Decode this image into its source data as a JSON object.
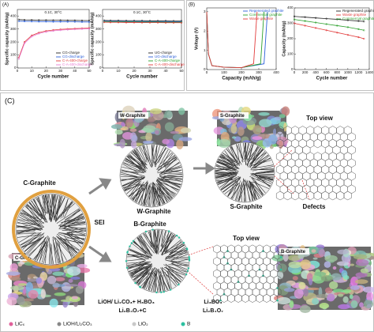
{
  "panel_labels": [
    "(A)",
    "(B)",
    "(C)"
  ],
  "chart_data": [
    {
      "type": "line",
      "x_label": "Cycle number",
      "y_label": "Specific capacity (mAh/g)",
      "annotation": "0.1C, 30°C",
      "xlim": [
        0,
        50
      ],
      "xticks": [
        0,
        10,
        20,
        30,
        40,
        50
      ],
      "ylim": [
        0,
        450
      ],
      "yticks": [
        0,
        100,
        200,
        300,
        400
      ],
      "legend": "lower right",
      "x": [
        1,
        5,
        10,
        15,
        20,
        25,
        30,
        35,
        40,
        45,
        50
      ],
      "series": [
        {
          "name": "CG-charge",
          "color": "#222222",
          "values": [
            372,
            370,
            369,
            368,
            368,
            367,
            367,
            366,
            366,
            365,
            365
          ]
        },
        {
          "name": "CG-discharge",
          "color": "#2b5fd9",
          "values": [
            360,
            359,
            358,
            357,
            357,
            356,
            356,
            355,
            355,
            354,
            354
          ]
        },
        {
          "name": "C-A-400-charge",
          "color": "#e23c3c",
          "values": [
            80,
            200,
            250,
            272,
            285,
            292,
            297,
            300,
            303,
            305,
            307
          ]
        },
        {
          "name": "C-A-400-discharge",
          "color": "#e87ad0",
          "values": [
            70,
            190,
            242,
            265,
            278,
            286,
            291,
            295,
            298,
            300,
            302
          ]
        }
      ]
    },
    {
      "type": "line",
      "x_label": "Cycle number",
      "y_label": "Specific capacity (mAh/g)",
      "annotation": "0.1C, 30°C",
      "xlim": [
        0,
        50
      ],
      "xticks": [
        0,
        10,
        20,
        30,
        40,
        50
      ],
      "ylim": [
        0,
        450
      ],
      "yticks": [
        0,
        100,
        200,
        300,
        400
      ],
      "legend": "lower right",
      "x": [
        1,
        5,
        10,
        15,
        20,
        25,
        30,
        35,
        40,
        45,
        50
      ],
      "series": [
        {
          "name": "UG-charge",
          "color": "#222222",
          "values": [
            366,
            365,
            365,
            364,
            364,
            364,
            363,
            363,
            363,
            362,
            362
          ]
        },
        {
          "name": "UG-discharge",
          "color": "#2b5fd9",
          "values": [
            360,
            359,
            359,
            358,
            358,
            358,
            357,
            357,
            357,
            356,
            356
          ]
        },
        {
          "name": "C-A-400-charge",
          "color": "#2ca02c",
          "values": [
            356,
            355,
            355,
            354,
            354,
            353,
            353,
            353,
            352,
            352,
            352
          ]
        },
        {
          "name": "C-A-400-discharge",
          "color": "#e23c3c",
          "values": [
            352,
            351,
            351,
            350,
            350,
            349,
            349,
            349,
            348,
            348,
            348
          ]
        }
      ]
    },
    {
      "type": "curves",
      "x_label": "Capacity (mAh/g)",
      "y_label": "Voltage (V)",
      "xlim": [
        0,
        400
      ],
      "xticks": [
        0,
        100,
        200,
        300,
        400
      ],
      "ylim": [
        0,
        3.2
      ],
      "yticks": [
        0,
        1,
        2,
        3
      ],
      "legend": "upper right",
      "series": [
        {
          "name": "Regenerated graphite",
          "color": "#2b5fd9",
          "x": [
            0,
            10,
            30,
            100,
            200,
            330,
            350
          ],
          "values": [
            3.0,
            0.8,
            0.2,
            0.12,
            0.1,
            0.3,
            3.0
          ]
        },
        {
          "name": "Commercial graphite",
          "color": "#2ca02c",
          "x": [
            0,
            10,
            30,
            100,
            200,
            310,
            330
          ],
          "values": [
            3.0,
            0.8,
            0.2,
            0.12,
            0.1,
            0.3,
            3.0
          ]
        },
        {
          "name": "Waste graphite",
          "color": "#e23c3c",
          "x": [
            0,
            10,
            30,
            100,
            200,
            270,
            290
          ],
          "values": [
            3.0,
            0.8,
            0.2,
            0.12,
            0.1,
            0.3,
            3.0
          ]
        }
      ]
    },
    {
      "type": "line",
      "x_label": "Cycle number",
      "y_label": "Capacity (mAh/g)",
      "xlim": [
        0,
        1400
      ],
      "xticks": [
        0,
        200,
        400,
        600,
        800,
        1000,
        1200,
        1400
      ],
      "ylim": [
        0,
        400
      ],
      "yticks": [
        0,
        100,
        200,
        300,
        400
      ],
      "legend": "upper right",
      "x": [
        0,
        200,
        400,
        600,
        800,
        1000,
        1200,
        1300
      ],
      "series": [
        {
          "name": "Regenerated graphite",
          "color": "#222222",
          "values": [
            345,
            340,
            335,
            330,
            326,
            320,
            315,
            312
          ]
        },
        {
          "name": "Waste graphite",
          "color": "#e23c3c",
          "values": [
            300,
            285,
            270,
            255,
            240,
            225,
            210,
            200
          ]
        },
        {
          "name": "Commercial graphite",
          "color": "#2ca02c",
          "values": [
            325,
            315,
            305,
            295,
            285,
            275,
            262,
            255
          ]
        }
      ]
    }
  ],
  "diagram": {
    "sem_w": "W-Graphite",
    "sem_s": "S-Graphite",
    "top_view_1": "Top view",
    "c_graphite": "C-Graphite",
    "sei": "SEI",
    "w_graphite": "W-Graphite",
    "s_graphite": "S-Graphite",
    "defects": "Defects",
    "b_graphite": "B-Graphite",
    "top_view_2": "Top view",
    "sem_c": "C-Graphite",
    "sem_b": "B-Graphite",
    "reaction_1": "LiOH/ Li₂CO₃+ H₃BO₃",
    "reaction_2": "Li₂B₄O₇+C",
    "product_1": "Li₃BO₃",
    "product_2": "Li₂B₄O₇",
    "legend": [
      "LiCₓ",
      "LiOH/Li₂CO₃",
      "LiO₂",
      "B"
    ]
  }
}
